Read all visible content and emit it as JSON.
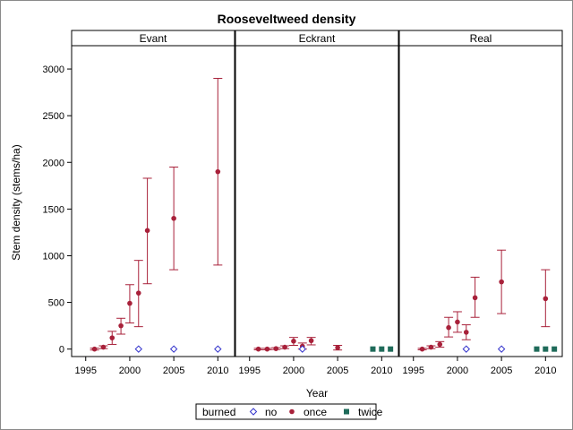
{
  "chart_data": {
    "type": "scatter",
    "title": "Rooseveltweed density",
    "xlabel": "Year",
    "ylabel": "Stem density (stems/ha)",
    "xlim": [
      1993.4,
      2011.9
    ],
    "ylim": [
      -80,
      3250
    ],
    "xticks": [
      1995,
      2000,
      2005,
      2010
    ],
    "yticks": [
      0,
      500,
      1000,
      1500,
      2000,
      2500,
      3000
    ],
    "grid": false,
    "legend": {
      "placement": "bottom-center",
      "title": "burned",
      "entries": [
        {
          "key": "no",
          "label": "no",
          "color": "#3333cc",
          "marker": "diamond-open"
        },
        {
          "key": "once",
          "label": "once",
          "color": "#a8213a",
          "marker": "circle-filled"
        },
        {
          "key": "twice",
          "label": "twice",
          "color": "#1f6b5a",
          "marker": "square-filled"
        }
      ]
    },
    "panels": [
      {
        "name": "Evant",
        "points": [
          {
            "series": "once",
            "x": 1996,
            "y": 0,
            "lo": -10,
            "hi": 10
          },
          {
            "series": "once",
            "x": 1997,
            "y": 20,
            "lo": 5,
            "hi": 35
          },
          {
            "series": "once",
            "x": 1998,
            "y": 120,
            "lo": 50,
            "hi": 190
          },
          {
            "series": "once",
            "x": 1999,
            "y": 250,
            "lo": 160,
            "hi": 330
          },
          {
            "series": "once",
            "x": 2000,
            "y": 490,
            "lo": 280,
            "hi": 690
          },
          {
            "series": "once",
            "x": 2001,
            "y": 600,
            "lo": 240,
            "hi": 950
          },
          {
            "series": "once",
            "x": 2002,
            "y": 1270,
            "lo": 700,
            "hi": 1830
          },
          {
            "series": "once",
            "x": 2005,
            "y": 1400,
            "lo": 850,
            "hi": 1950
          },
          {
            "series": "once",
            "x": 2010,
            "y": 1900,
            "lo": 900,
            "hi": 2900
          },
          {
            "series": "no",
            "x": 2001,
            "y": 0
          },
          {
            "series": "no",
            "x": 2005,
            "y": 0
          },
          {
            "series": "no",
            "x": 2010,
            "y": 0
          }
        ]
      },
      {
        "name": "Eckrant",
        "points": [
          {
            "series": "once",
            "x": 1996,
            "y": 0,
            "lo": -8,
            "hi": 8
          },
          {
            "series": "once",
            "x": 1997,
            "y": 0,
            "lo": -8,
            "hi": 8
          },
          {
            "series": "once",
            "x": 1998,
            "y": 5,
            "lo": -5,
            "hi": 15
          },
          {
            "series": "once",
            "x": 1999,
            "y": 20,
            "lo": 5,
            "hi": 35
          },
          {
            "series": "once",
            "x": 2000,
            "y": 85,
            "lo": 40,
            "hi": 125
          },
          {
            "series": "once",
            "x": 2001,
            "y": 30,
            "lo": 0,
            "hi": 65
          },
          {
            "series": "once",
            "x": 2002,
            "y": 90,
            "lo": 45,
            "hi": 125
          },
          {
            "series": "once",
            "x": 2005,
            "y": 15,
            "lo": -10,
            "hi": 40
          },
          {
            "series": "no",
            "x": 2001,
            "y": 0
          },
          {
            "series": "twice",
            "x": 2009,
            "y": 0
          },
          {
            "series": "twice",
            "x": 2010,
            "y": 0
          },
          {
            "series": "twice",
            "x": 2011,
            "y": 0
          }
        ]
      },
      {
        "name": "Real",
        "points": [
          {
            "series": "once",
            "x": 1996,
            "y": 0,
            "lo": -8,
            "hi": 8
          },
          {
            "series": "once",
            "x": 1997,
            "y": 20,
            "lo": 5,
            "hi": 35
          },
          {
            "series": "once",
            "x": 1998,
            "y": 50,
            "lo": 20,
            "hi": 80
          },
          {
            "series": "once",
            "x": 1999,
            "y": 230,
            "lo": 130,
            "hi": 340
          },
          {
            "series": "once",
            "x": 2000,
            "y": 290,
            "lo": 180,
            "hi": 400
          },
          {
            "series": "once",
            "x": 2001,
            "y": 180,
            "lo": 100,
            "hi": 260
          },
          {
            "series": "once",
            "x": 2002,
            "y": 550,
            "lo": 340,
            "hi": 770
          },
          {
            "series": "once",
            "x": 2005,
            "y": 720,
            "lo": 380,
            "hi": 1060
          },
          {
            "series": "once",
            "x": 2010,
            "y": 540,
            "lo": 240,
            "hi": 850
          },
          {
            "series": "no",
            "x": 2001,
            "y": 0
          },
          {
            "series": "no",
            "x": 2005,
            "y": 0
          },
          {
            "series": "twice",
            "x": 2009,
            "y": 0
          },
          {
            "series": "twice",
            "x": 2010,
            "y": 0
          },
          {
            "series": "twice",
            "x": 2011,
            "y": 0
          }
        ]
      }
    ]
  }
}
